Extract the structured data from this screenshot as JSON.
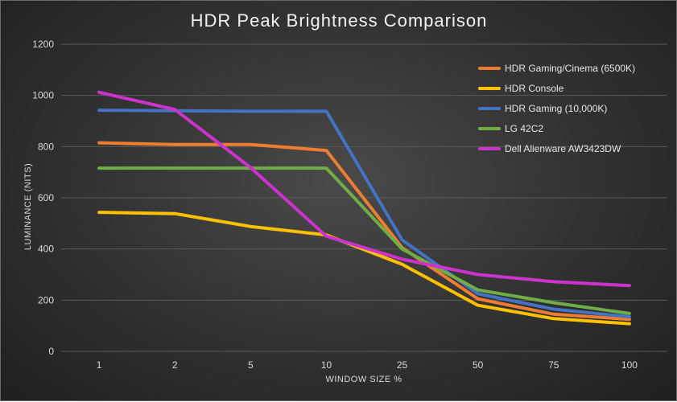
{
  "chart_data": {
    "type": "line",
    "title": "HDR Peak Brightness Comparison",
    "xlabel": "WINDOW SIZE %",
    "ylabel": "LUMINANCE (NITS)",
    "categories": [
      "1",
      "2",
      "5",
      "10",
      "25",
      "50",
      "75",
      "100"
    ],
    "ylim": [
      0,
      1200
    ],
    "yticks": [
      "0",
      "200",
      "400",
      "600",
      "800",
      "1000",
      "1200"
    ],
    "grid": true,
    "legend_position": "top-right",
    "series": [
      {
        "name": "HDR Gaming/Cinema (6500K)",
        "color": "#ed7d31",
        "values": [
          815,
          808,
          808,
          785,
          405,
          205,
          145,
          125
        ]
      },
      {
        "name": "HDR Console",
        "color": "#ffc000",
        "values": [
          543,
          538,
          488,
          455,
          340,
          180,
          128,
          108
        ]
      },
      {
        "name": "HDR Gaming (10,000K)",
        "color": "#4472c4",
        "values": [
          942,
          940,
          938,
          938,
          435,
          225,
          165,
          135
        ]
      },
      {
        "name": "LG 42C2",
        "color": "#70ad47",
        "values": [
          716,
          716,
          716,
          716,
          400,
          240,
          190,
          148
        ]
      },
      {
        "name": "Dell Alienware AW3423DW",
        "color": "#cc33cc",
        "values": [
          1012,
          945,
          718,
          450,
          360,
          300,
          272,
          257
        ]
      }
    ]
  }
}
